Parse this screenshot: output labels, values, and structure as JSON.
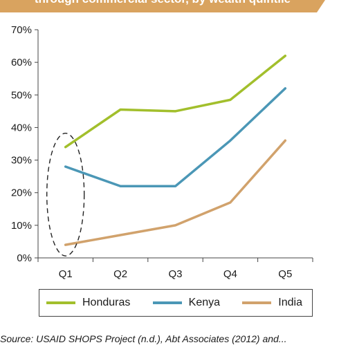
{
  "title": "through commercial sector, by wealth quintile",
  "source_note": "Source: USAID SHOPS Project (n.d.), Abt Associates (2012) and...",
  "colors": {
    "title_banner": "#d9a35f",
    "axis": "#444444",
    "annotation": "#222222"
  },
  "chart_data": {
    "type": "line",
    "categories": [
      "Q1",
      "Q2",
      "Q3",
      "Q4",
      "Q5"
    ],
    "y_ticks": [
      "0%",
      "10%",
      "20%",
      "30%",
      "40%",
      "50%",
      "60%",
      "70%"
    ],
    "ylim": [
      0,
      70
    ],
    "grid": false,
    "legend_position": "bottom",
    "series": [
      {
        "name": "Honduras",
        "color": "#a2bf2c",
        "values": [
          34,
          45.5,
          45,
          48.5,
          62
        ]
      },
      {
        "name": "Kenya",
        "color": "#4b97b6",
        "values": [
          28,
          22,
          22,
          36,
          52
        ]
      },
      {
        "name": "India",
        "color": "#d1a26c",
        "values": [
          4,
          7,
          10,
          17,
          36
        ]
      }
    ],
    "annotation": "dashed ellipse around Q1 values"
  }
}
